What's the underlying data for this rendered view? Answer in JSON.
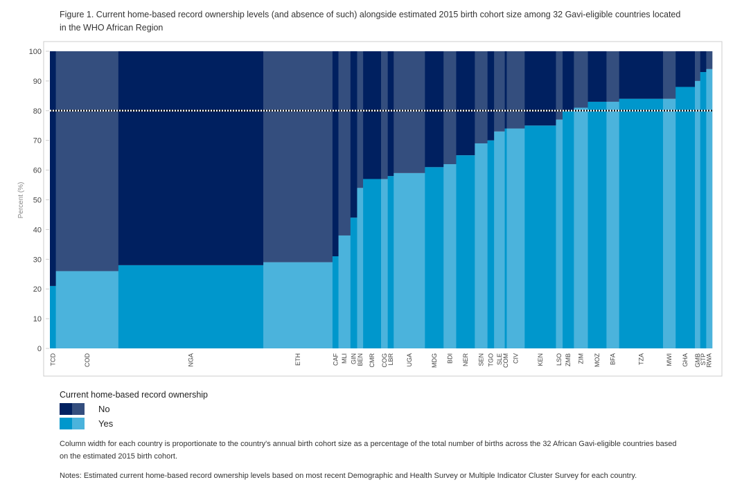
{
  "chart_data": {
    "type": "marimekko",
    "title": "Figure 1. Current home-based record ownership levels (and absence of such) alongside estimated 2015 birth cohort size among 32 Gavi-eligible countries located in the WHO African Region",
    "y_label": "Percent (%)",
    "categories": [
      "TCD",
      "COD",
      "NGA",
      "ETH",
      "CAF",
      "MLI",
      "GIN",
      "BEN",
      "CMR",
      "COG",
      "LBR",
      "UGA",
      "MDG",
      "BDI",
      "NER",
      "SEN",
      "TGO",
      "SLE",
      "COM",
      "CIV",
      "KEN",
      "LSO",
      "ZMB",
      "ZIM",
      "MOZ",
      "BFA",
      "TZA",
      "MWI",
      "GHA",
      "GMB",
      "STP",
      "RWA"
    ],
    "widths": [
      0.9,
      9.4,
      21.8,
      10.4,
      0.9,
      1.8,
      1.0,
      0.9,
      2.7,
      1.0,
      0.9,
      4.7,
      2.8,
      1.9,
      2.8,
      1.9,
      1.0,
      1.6,
      0.3,
      2.7,
      4.7,
      1.0,
      1.7,
      2.1,
      2.8,
      1.9,
      6.6,
      1.9,
      2.9,
      0.8,
      0.9,
      0.9
    ],
    "series": [
      {
        "name": "Yes",
        "colors": [
          "#0097cc",
          "#4bb3dc"
        ],
        "values": [
          21,
          26,
          28,
          29,
          31,
          38,
          44,
          54,
          57,
          57,
          58,
          59,
          61,
          62,
          65,
          69,
          70,
          73,
          74,
          74,
          75,
          77,
          80,
          81,
          83,
          83,
          84,
          84,
          88,
          90,
          93,
          94
        ]
      },
      {
        "name": "No",
        "colors": [
          "#002060",
          "#344e7e"
        ],
        "values": [
          79,
          74,
          72,
          71,
          69,
          62,
          56,
          46,
          43,
          43,
          42,
          41,
          39,
          38,
          35,
          31,
          30,
          27,
          26,
          26,
          25,
          23,
          20,
          19,
          17,
          17,
          16,
          16,
          12,
          10,
          7,
          6
        ]
      }
    ],
    "ylim": [
      0,
      100
    ],
    "yticks": [
      0,
      10,
      20,
      30,
      40,
      50,
      60,
      70,
      80,
      90,
      100
    ],
    "reference_line": 80,
    "legend_title": "Current home-based record ownership",
    "notes": [
      "Column width for each country is proportionate to the country's annual birth cohort size as a percentage of the total number of births across the 32 African Gavi-eligible countries based on the estimated 2015 birth cohort.",
      "Notes: Estimated current home-based record ownership levels based on most recent Demographic and Health Survey or Multiple Indicator Cluster Survey for each country."
    ]
  }
}
